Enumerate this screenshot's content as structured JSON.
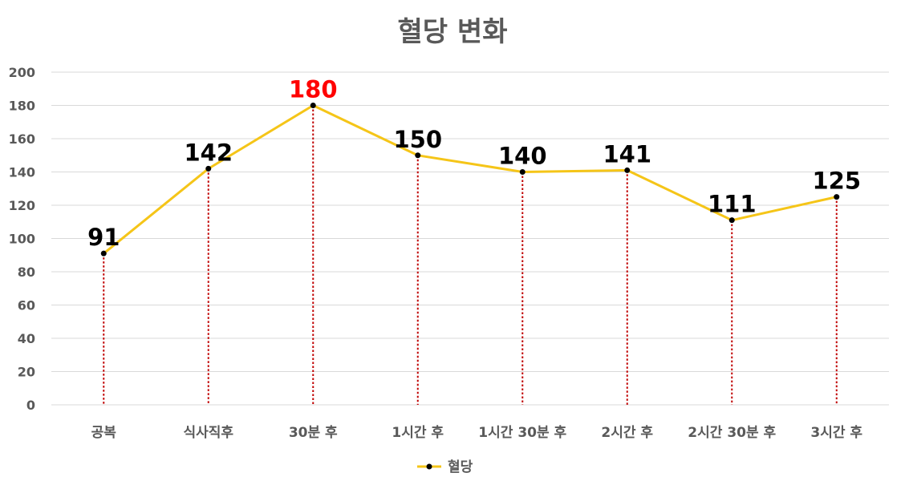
{
  "chart_data": {
    "type": "line",
    "title": "혈당 변화",
    "categories": [
      "공복",
      "식사직후",
      "30분 후",
      "1시간 후",
      "1시간 30분 후",
      "2시간 후",
      "2시간 30분 후",
      "3시간 후"
    ],
    "series": [
      {
        "name": "혈당",
        "values": [
          91,
          142,
          180,
          150,
          140,
          141,
          111,
          125
        ],
        "color": "#F5C518"
      }
    ],
    "data_labels": [
      "91",
      "142",
      "180",
      "150",
      "140",
      "141",
      "111",
      "125"
    ],
    "highlight_label": {
      "index": 2,
      "color": "#FF0000"
    },
    "data_label_color": "#000000",
    "drop_line_color": "#C00000",
    "marker_color": "#000000",
    "ylim": [
      0,
      200
    ],
    "yticks": [
      "0",
      "20",
      "40",
      "60",
      "80",
      "100",
      "120",
      "140",
      "160",
      "180",
      "200"
    ],
    "grid": true,
    "legend": "bottom",
    "xlabel": "",
    "ylabel": ""
  }
}
